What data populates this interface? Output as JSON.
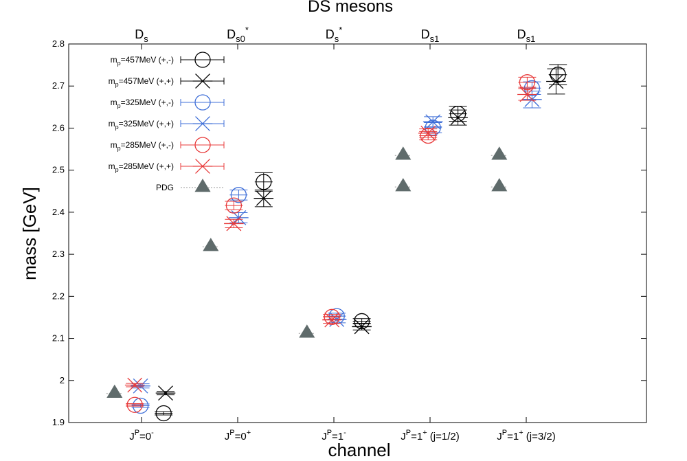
{
  "chart_data": {
    "type": "scatter",
    "title": "DS mesons",
    "xlabel": "channel",
    "ylabel": "mass [GeV]",
    "ylim": [
      1.9,
      2.8
    ],
    "yticks": [
      "1.9",
      "2",
      "2.1",
      "2.2",
      "2.3",
      "2.4",
      "2.5",
      "2.6",
      "2.7",
      "2.8"
    ],
    "grid": false,
    "legend_position": "top-left",
    "channels": [
      {
        "label": "J^P=0^-",
        "top_label": "D_s"
      },
      {
        "label": "J^P=0^+",
        "top_label": "D_s0^*"
      },
      {
        "label": "J^P=1^-",
        "top_label": "D_s^*"
      },
      {
        "label": "J^P=1^+ (j=1/2)",
        "top_label": "D_s1"
      },
      {
        "label": "J^P=1^+ (j=3/2)",
        "top_label": "D_s1"
      }
    ],
    "series": [
      {
        "name": "m_p=457MeV (+,-)",
        "marker": "circle",
        "color": "#000000",
        "points": [
          {
            "x": 1.23,
            "y": 1.922,
            "err": 0.004
          },
          {
            "x": 2.27,
            "y": 2.472,
            "err": 0.022
          },
          {
            "x": 3.29,
            "y": 2.141,
            "err": 0.006
          },
          {
            "x": 4.29,
            "y": 2.634,
            "err": 0.018
          },
          {
            "x": 5.33,
            "y": 2.727,
            "err": 0.024
          }
        ]
      },
      {
        "name": "m_p=457MeV (+,+)",
        "marker": "asterisk",
        "color": "#000000",
        "points": [
          {
            "x": 1.25,
            "y": 1.97,
            "err": 0.004
          },
          {
            "x": 2.27,
            "y": 2.433,
            "err": 0.02
          },
          {
            "x": 3.29,
            "y": 2.128,
            "err": 0.008
          },
          {
            "x": 4.29,
            "y": 2.625,
            "err": 0.018
          },
          {
            "x": 5.31,
            "y": 2.711,
            "err": 0.03
          }
        ]
      },
      {
        "name": "m_p=325MeV (+,-)",
        "marker": "circle",
        "color": "#3f6fd8",
        "points": [
          {
            "x": 0.99,
            "y": 1.94,
            "err": 0.004
          },
          {
            "x": 2.01,
            "y": 2.441,
            "err": 0.012
          },
          {
            "x": 3.03,
            "y": 2.153,
            "err": 0.007
          },
          {
            "x": 4.03,
            "y": 2.601,
            "err": 0.012
          },
          {
            "x": 5.06,
            "y": 2.695,
            "err": 0.015
          }
        ]
      },
      {
        "name": "m_p=325MeV (+,+)",
        "marker": "asterisk",
        "color": "#3f6fd8",
        "points": [
          {
            "x": 0.99,
            "y": 1.987,
            "err": 0.005
          },
          {
            "x": 2.01,
            "y": 2.387,
            "err": 0.012
          },
          {
            "x": 3.03,
            "y": 2.145,
            "err": 0.008
          },
          {
            "x": 4.03,
            "y": 2.615,
            "err": 0.012
          },
          {
            "x": 5.06,
            "y": 2.668,
            "err": 0.02
          }
        ]
      },
      {
        "name": "m_p=285MeV (+,-)",
        "marker": "circle",
        "color": "#e83a3a",
        "points": [
          {
            "x": 0.93,
            "y": 1.942,
            "err": 0.003
          },
          {
            "x": 1.96,
            "y": 2.416,
            "err": 0.01
          },
          {
            "x": 2.98,
            "y": 2.151,
            "err": 0.006
          },
          {
            "x": 3.98,
            "y": 2.582,
            "err": 0.01
          },
          {
            "x": 5.01,
            "y": 2.709,
            "err": 0.012
          }
        ]
      },
      {
        "name": "m_p=285MeV (+,+)",
        "marker": "asterisk",
        "color": "#e83a3a",
        "points": [
          {
            "x": 0.93,
            "y": 1.989,
            "err": 0.004
          },
          {
            "x": 1.96,
            "y": 2.373,
            "err": 0.01
          },
          {
            "x": 2.98,
            "y": 2.144,
            "err": 0.008
          },
          {
            "x": 3.98,
            "y": 2.588,
            "err": 0.01
          },
          {
            "x": 5.01,
            "y": 2.68,
            "err": 0.014
          }
        ]
      },
      {
        "name": "PDG",
        "marker": "triangle",
        "color": "#5f6b6b",
        "points": [
          {
            "x": 0.72,
            "y": 1.969
          },
          {
            "x": 1.72,
            "y": 2.318
          },
          {
            "x": 2.72,
            "y": 2.112
          },
          {
            "x": 3.72,
            "y": 2.46
          },
          {
            "x": 3.72,
            "y": 2.535
          },
          {
            "x": 4.72,
            "y": 2.46
          },
          {
            "x": 4.72,
            "y": 2.535
          }
        ]
      }
    ]
  }
}
